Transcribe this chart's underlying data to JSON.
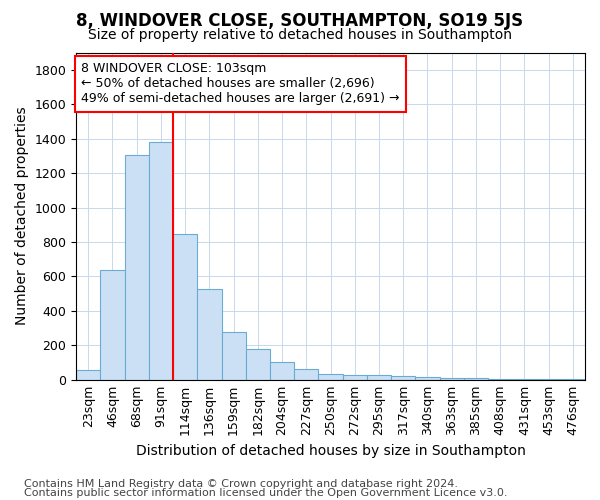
{
  "title": "8, WINDOVER CLOSE, SOUTHAMPTON, SO19 5JS",
  "subtitle": "Size of property relative to detached houses in Southampton",
  "xlabel": "Distribution of detached houses by size in Southampton",
  "ylabel": "Number of detached properties",
  "categories": [
    "23sqm",
    "46sqm",
    "68sqm",
    "91sqm",
    "114sqm",
    "136sqm",
    "159sqm",
    "182sqm",
    "204sqm",
    "227sqm",
    "250sqm",
    "272sqm",
    "295sqm",
    "317sqm",
    "340sqm",
    "363sqm",
    "385sqm",
    "408sqm",
    "431sqm",
    "453sqm",
    "476sqm"
  ],
  "values": [
    55,
    640,
    1305,
    1380,
    845,
    525,
    280,
    180,
    105,
    65,
    35,
    30,
    25,
    22,
    18,
    12,
    8,
    5,
    3,
    2,
    2
  ],
  "bar_color": "#cce0f5",
  "bar_edge_color": "#6aabd2",
  "red_line_index": 3.5,
  "ylim": [
    0,
    1900
  ],
  "yticks": [
    0,
    200,
    400,
    600,
    800,
    1000,
    1200,
    1400,
    1600,
    1800
  ],
  "annotation_line1": "8 WINDOVER CLOSE: 103sqm",
  "annotation_line2": "← 50% of detached houses are smaller (2,696)",
  "annotation_line3": "49% of semi-detached houses are larger (2,691) →",
  "footer1": "Contains HM Land Registry data © Crown copyright and database right 2024.",
  "footer2": "Contains public sector information licensed under the Open Government Licence v3.0.",
  "title_fontsize": 12,
  "subtitle_fontsize": 10,
  "axis_label_fontsize": 10,
  "tick_fontsize": 9,
  "annotation_fontsize": 9,
  "footer_fontsize": 8,
  "background_color": "#ffffff",
  "grid_color": "#c8d8ec"
}
